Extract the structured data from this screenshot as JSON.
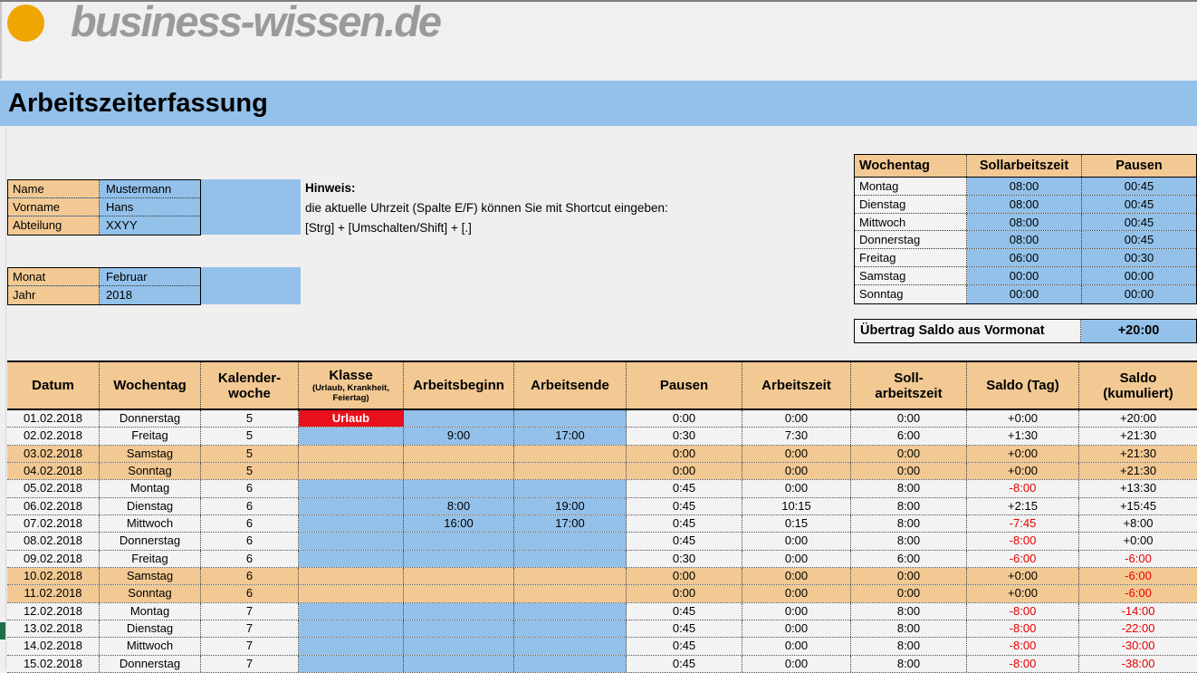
{
  "logo": {
    "brand": "business-wissen.de"
  },
  "title": "Arbeitszeiterfassung",
  "profile": {
    "rows": [
      {
        "label": "Name",
        "value": "Mustermann"
      },
      {
        "label": "Vorname",
        "value": "Hans"
      },
      {
        "label": "Abteilung",
        "value": "XXYY"
      }
    ]
  },
  "period": {
    "rows": [
      {
        "label": "Monat",
        "value": "Februar"
      },
      {
        "label": "Jahr",
        "value": "2018"
      }
    ]
  },
  "hinweis": {
    "title": "Hinweis:",
    "line1": "die aktuelle Uhrzeit (Spalte E/F) können Sie mit Shortcut eingeben:",
    "line2": "[Strg] + [Umschalten/Shift] + [.]"
  },
  "weekly_schedule": {
    "headers": [
      "Wochentag",
      "Sollarbeitszeit",
      "Pausen"
    ],
    "rows": [
      [
        "Montag",
        "08:00",
        "00:45"
      ],
      [
        "Dienstag",
        "08:00",
        "00:45"
      ],
      [
        "Mittwoch",
        "08:00",
        "00:45"
      ],
      [
        "Donnerstag",
        "08:00",
        "00:45"
      ],
      [
        "Freitag",
        "06:00",
        "00:30"
      ],
      [
        "Samstag",
        "00:00",
        "00:00"
      ],
      [
        "Sonntag",
        "00:00",
        "00:00"
      ]
    ]
  },
  "carryover": {
    "label": "Übertrag Saldo aus Vormonat",
    "value": "+20:00"
  },
  "timesheet": {
    "headers": [
      {
        "lines": [
          "Datum"
        ]
      },
      {
        "lines": [
          "Wochentag"
        ]
      },
      {
        "lines": [
          "Kalender-",
          "woche"
        ]
      },
      {
        "lines": [
          "Klasse"
        ],
        "sub": "(Urlaub, Krankheit, Feiertag)"
      },
      {
        "lines": [
          "Arbeitsbeginn"
        ]
      },
      {
        "lines": [
          "Arbeitsende"
        ]
      },
      {
        "lines": [
          "Pausen"
        ]
      },
      {
        "lines": [
          "Arbeitszeit"
        ]
      },
      {
        "lines": [
          "Soll-",
          "arbeitszeit"
        ]
      },
      {
        "lines": [
          "Saldo (Tag)"
        ]
      },
      {
        "lines": [
          "Saldo",
          "(kumuliert)"
        ]
      }
    ],
    "rows": [
      {
        "datum": "01.02.2018",
        "wochentag": "Donnerstag",
        "kw": "5",
        "klasse": "Urlaub",
        "klasse_type": "urlaub",
        "beginn": "",
        "ende": "",
        "pausen": "0:00",
        "arbeitszeit": "0:00",
        "soll": "0:00",
        "saldo_tag": "+0:00",
        "saldo_kum": "+20:00",
        "weekend": false
      },
      {
        "datum": "02.02.2018",
        "wochentag": "Freitag",
        "kw": "5",
        "klasse": "",
        "klasse_type": "",
        "beginn": "9:00",
        "ende": "17:00",
        "pausen": "0:30",
        "arbeitszeit": "7:30",
        "soll": "6:00",
        "saldo_tag": "+1:30",
        "saldo_kum": "+21:30",
        "weekend": false
      },
      {
        "datum": "03.02.2018",
        "wochentag": "Samstag",
        "kw": "5",
        "klasse": "",
        "klasse_type": "",
        "beginn": "",
        "ende": "",
        "pausen": "0:00",
        "arbeitszeit": "0:00",
        "soll": "0:00",
        "saldo_tag": "+0:00",
        "saldo_kum": "+21:30",
        "weekend": true
      },
      {
        "datum": "04.02.2018",
        "wochentag": "Sonntag",
        "kw": "5",
        "klasse": "",
        "klasse_type": "",
        "beginn": "",
        "ende": "",
        "pausen": "0:00",
        "arbeitszeit": "0:00",
        "soll": "0:00",
        "saldo_tag": "+0:00",
        "saldo_kum": "+21:30",
        "weekend": true
      },
      {
        "datum": "05.02.2018",
        "wochentag": "Montag",
        "kw": "6",
        "klasse": "",
        "klasse_type": "",
        "beginn": "",
        "ende": "",
        "pausen": "0:45",
        "arbeitszeit": "0:00",
        "soll": "8:00",
        "saldo_tag": "-8:00",
        "saldo_kum": "+13:30",
        "weekend": false
      },
      {
        "datum": "06.02.2018",
        "wochentag": "Dienstag",
        "kw": "6",
        "klasse": "",
        "klasse_type": "",
        "beginn": "8:00",
        "ende": "19:00",
        "pausen": "0:45",
        "arbeitszeit": "10:15",
        "soll": "8:00",
        "saldo_tag": "+2:15",
        "saldo_kum": "+15:45",
        "weekend": false
      },
      {
        "datum": "07.02.2018",
        "wochentag": "Mittwoch",
        "kw": "6",
        "klasse": "",
        "klasse_type": "",
        "beginn": "16:00",
        "ende": "17:00",
        "pausen": "0:45",
        "arbeitszeit": "0:15",
        "soll": "8:00",
        "saldo_tag": "-7:45",
        "saldo_kum": "+8:00",
        "weekend": false
      },
      {
        "datum": "08.02.2018",
        "wochentag": "Donnerstag",
        "kw": "6",
        "klasse": "",
        "klasse_type": "",
        "beginn": "",
        "ende": "",
        "pausen": "0:45",
        "arbeitszeit": "0:00",
        "soll": "8:00",
        "saldo_tag": "-8:00",
        "saldo_kum": "+0:00",
        "weekend": false
      },
      {
        "datum": "09.02.2018",
        "wochentag": "Freitag",
        "kw": "6",
        "klasse": "",
        "klasse_type": "",
        "beginn": "",
        "ende": "",
        "pausen": "0:30",
        "arbeitszeit": "0:00",
        "soll": "6:00",
        "saldo_tag": "-6:00",
        "saldo_kum": "-6:00",
        "weekend": false
      },
      {
        "datum": "10.02.2018",
        "wochentag": "Samstag",
        "kw": "6",
        "klasse": "",
        "klasse_type": "",
        "beginn": "",
        "ende": "",
        "pausen": "0:00",
        "arbeitszeit": "0:00",
        "soll": "0:00",
        "saldo_tag": "+0:00",
        "saldo_kum": "-6:00",
        "weekend": true
      },
      {
        "datum": "11.02.2018",
        "wochentag": "Sonntag",
        "kw": "6",
        "klasse": "",
        "klasse_type": "",
        "beginn": "",
        "ende": "",
        "pausen": "0:00",
        "arbeitszeit": "0:00",
        "soll": "0:00",
        "saldo_tag": "+0:00",
        "saldo_kum": "-6:00",
        "weekend": true
      },
      {
        "datum": "12.02.2018",
        "wochentag": "Montag",
        "kw": "7",
        "klasse": "",
        "klasse_type": "",
        "beginn": "",
        "ende": "",
        "pausen": "0:45",
        "arbeitszeit": "0:00",
        "soll": "8:00",
        "saldo_tag": "-8:00",
        "saldo_kum": "-14:00",
        "weekend": false
      },
      {
        "datum": "13.02.2018",
        "wochentag": "Dienstag",
        "kw": "7",
        "klasse": "",
        "klasse_type": "",
        "beginn": "",
        "ende": "",
        "pausen": "0:45",
        "arbeitszeit": "0:00",
        "soll": "8:00",
        "saldo_tag": "-8:00",
        "saldo_kum": "-22:00",
        "weekend": false,
        "marker": true
      },
      {
        "datum": "14.02.2018",
        "wochentag": "Mittwoch",
        "kw": "7",
        "klasse": "",
        "klasse_type": "",
        "beginn": "",
        "ende": "",
        "pausen": "0:45",
        "arbeitszeit": "0:00",
        "soll": "8:00",
        "saldo_tag": "-8:00",
        "saldo_kum": "-30:00",
        "weekend": false
      },
      {
        "datum": "15.02.2018",
        "wochentag": "Donnerstag",
        "kw": "7",
        "klasse": "",
        "klasse_type": "",
        "beginn": "",
        "ende": "",
        "pausen": "0:45",
        "arbeitszeit": "0:00",
        "soll": "8:00",
        "saldo_tag": "-8:00",
        "saldo_kum": "-38:00",
        "weekend": false
      }
    ]
  },
  "colors": {
    "band_blue": "#93c1ea",
    "cell_blue": "#93c1ea",
    "tan": "#f2c993",
    "urlaub_red": "#e8101c",
    "negative_red": "#e60000",
    "logo_orange": "#efa502",
    "logo_gray": "#9a9a9a",
    "marker_green": "#1e7145"
  }
}
